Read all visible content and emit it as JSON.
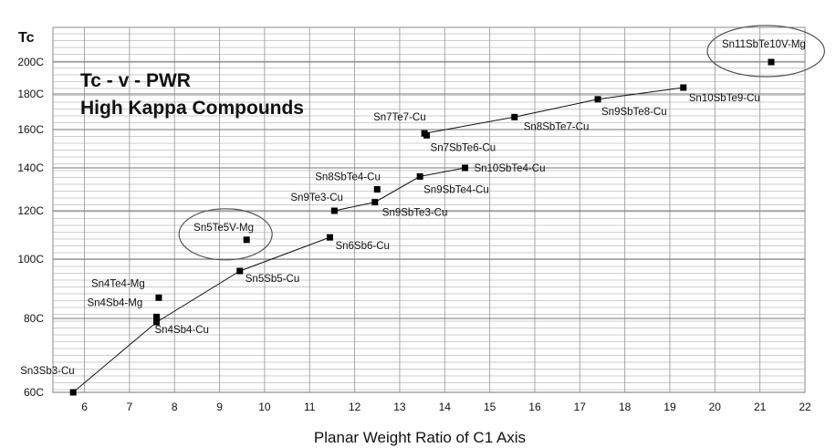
{
  "chart_data": {
    "type": "scatter",
    "title": "Tc - v - PWR",
    "subtitle": "High Kappa Compounds",
    "xlabel": "Planar Weight Ratio of C1 Axis",
    "ylabel": "Tc",
    "xlim": [
      5.3,
      22
    ],
    "ylim": [
      60,
      205
    ],
    "grid": true,
    "x_ticks": [
      6,
      7,
      8,
      9,
      10,
      11,
      12,
      13,
      14,
      15,
      16,
      17,
      18,
      19,
      20,
      21,
      22
    ],
    "y_ticks": [
      {
        "value": 60,
        "label": "60C"
      },
      {
        "value": 80,
        "label": "80C"
      },
      {
        "value": 100,
        "label": "100C"
      },
      {
        "value": 120,
        "label": "120C"
      },
      {
        "value": 140,
        "label": "140C"
      },
      {
        "value": 160,
        "label": "160C"
      },
      {
        "value": 180,
        "label": "180C"
      },
      {
        "value": 200,
        "label": "200C"
      }
    ],
    "points": [
      {
        "label": "Sn3Sb3-Cu",
        "x": 5.75,
        "y": 60,
        "dx": -58,
        "dy": -20
      },
      {
        "label": "Sn4Sb4-Cu",
        "x": 7.6,
        "y": 79,
        "dx": -2,
        "dy": 12
      },
      {
        "label": "Sn4Sb4-Mg",
        "x": 7.6,
        "y": 80.5,
        "dx": -76,
        "dy": -12
      },
      {
        "label": "Sn4Te4-Mg",
        "x": 7.65,
        "y": 87,
        "dx": -74,
        "dy": -12
      },
      {
        "label": "Sn5Sb5-Cu",
        "x": 9.45,
        "y": 96,
        "dx": 6,
        "dy": 12
      },
      {
        "label": "Sn5Te5V-Mg",
        "x": 9.6,
        "y": 108,
        "dx": -58,
        "dy": -10
      },
      {
        "label": "Sn6Sb6-Cu",
        "x": 11.45,
        "y": 109,
        "dx": 6,
        "dy": 13
      },
      {
        "label": "Sn9Te3-Cu",
        "x": 11.55,
        "y": 120,
        "dx": -48,
        "dy": -11
      },
      {
        "label": "Sn9SbTe3-Cu",
        "x": 12.45,
        "y": 124,
        "dx": 8,
        "dy": 15
      },
      {
        "label": "Sn8SbTe4-Cu",
        "x": 12.5,
        "y": 130,
        "dx": -68,
        "dy": -10
      },
      {
        "label": "Sn9SbTe4-Cu",
        "x": 13.45,
        "y": 136,
        "dx": 4,
        "dy": 18
      },
      {
        "label": "Sn10SbTe4-Cu",
        "x": 14.45,
        "y": 140,
        "dx": 10,
        "dy": 4
      },
      {
        "label": "Sn7Te7-Cu",
        "x": 13.55,
        "y": 158,
        "dx": -56,
        "dy": -14
      },
      {
        "label": "Sn7SbTe6-Cu",
        "x": 13.6,
        "y": 157,
        "dx": 4,
        "dy": 17
      },
      {
        "label": "Sn8SbTe7-Cu",
        "x": 15.55,
        "y": 167,
        "dx": 10,
        "dy": 14
      },
      {
        "label": "Sn9SbTe8-Cu",
        "x": 17.4,
        "y": 177,
        "dx": 4,
        "dy": 17
      },
      {
        "label": "Sn10SbTe9-Cu",
        "x": 19.3,
        "y": 184,
        "dx": 6,
        "dy": 15
      },
      {
        "label": "Sn11SbTe10V-Mg",
        "x": 21.25,
        "y": 200,
        "dx": -54,
        "dy": -16
      }
    ],
    "lines": [
      {
        "points": [
          [
            5.75,
            60
          ],
          [
            7.6,
            79
          ],
          [
            9.45,
            96
          ],
          [
            11.45,
            109
          ]
        ]
      },
      {
        "points": [
          [
            11.55,
            120
          ],
          [
            12.45,
            124
          ],
          [
            13.45,
            136
          ],
          [
            14.45,
            140
          ]
        ]
      },
      {
        "points": [
          [
            13.55,
            158
          ],
          [
            15.55,
            167
          ],
          [
            17.4,
            177
          ],
          [
            19.3,
            184
          ]
        ]
      }
    ],
    "circled": [
      "Sn5Te5V-Mg",
      "Sn11SbTe10V-Mg"
    ]
  }
}
